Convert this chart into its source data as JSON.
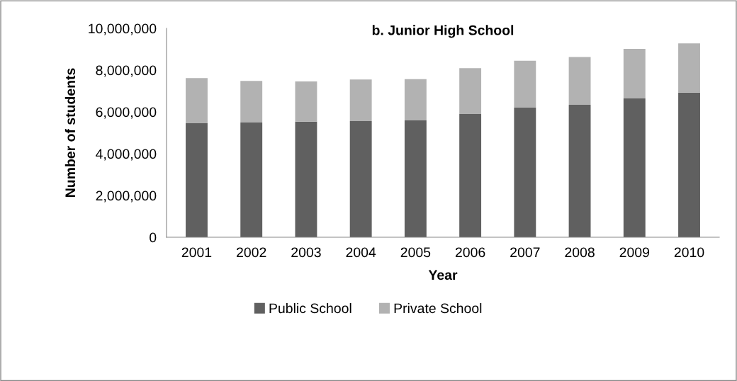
{
  "chart_data": {
    "type": "bar",
    "title": "b. Junior High School",
    "xlabel": "Year",
    "ylabel": "Number of students",
    "categories": [
      "2001",
      "2002",
      "2003",
      "2004",
      "2005",
      "2006",
      "2007",
      "2008",
      "2009",
      "2010"
    ],
    "stacked": true,
    "series": [
      {
        "name": "Public School",
        "color": "#606060",
        "values": [
          5460000,
          5490000,
          5530000,
          5560000,
          5590000,
          5900000,
          6200000,
          6340000,
          6640000,
          6920000
        ]
      },
      {
        "name": "Private School",
        "color": "#b2b2b2",
        "values": [
          2160000,
          1990000,
          1930000,
          1990000,
          1980000,
          2190000,
          2250000,
          2290000,
          2380000,
          2360000
        ]
      }
    ],
    "ylim": [
      0,
      10000000
    ],
    "yticks": [
      {
        "value": 0,
        "label": "0"
      },
      {
        "value": 2000000,
        "label": "2,000,000"
      },
      {
        "value": 4000000,
        "label": "4,000,000"
      },
      {
        "value": 6000000,
        "label": "6,000,000"
      },
      {
        "value": 8000000,
        "label": "8,000,000"
      },
      {
        "value": 10000000,
        "label": "10,000,000"
      }
    ],
    "grid": false,
    "legend": "bottom"
  }
}
